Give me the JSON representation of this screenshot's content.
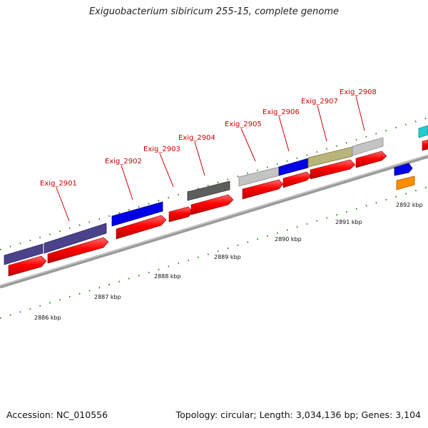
{
  "title": "Exiguobacterium sibiricum 255-15, complete genome",
  "footer": {
    "accession": "Accession: NC_010556",
    "summary": "Topology: circular; Length: 3,034,136 bp; Genes: 3,104"
  },
  "gene_labels": [
    "Exig_2901",
    "Exig_2902",
    "Exig_2903",
    "Exig_2904",
    "Exig_2905",
    "Exig_2906",
    "Exig_2907",
    "Exig_2908"
  ],
  "kbp_labels": [
    "2886 kbp",
    "2887 kbp",
    "2888 kbp",
    "2889 kbp",
    "2890 kbp",
    "2891 kbp",
    "2892 kbp"
  ],
  "colors": {
    "cds": "#ff0000",
    "backbone": "#8a8a8a",
    "ticks": "#2d7a1f",
    "label_red": "#cc0000",
    "feature_purple": "#4a428a",
    "feature_blue": "#0000e6",
    "feature_darkgray": "#5e5e5e",
    "feature_lightgray": "#c4c4c4",
    "feature_olive": "#b8b47a",
    "feature_cyan": "#22cccc",
    "feature_orange": "#ff8c00"
  }
}
